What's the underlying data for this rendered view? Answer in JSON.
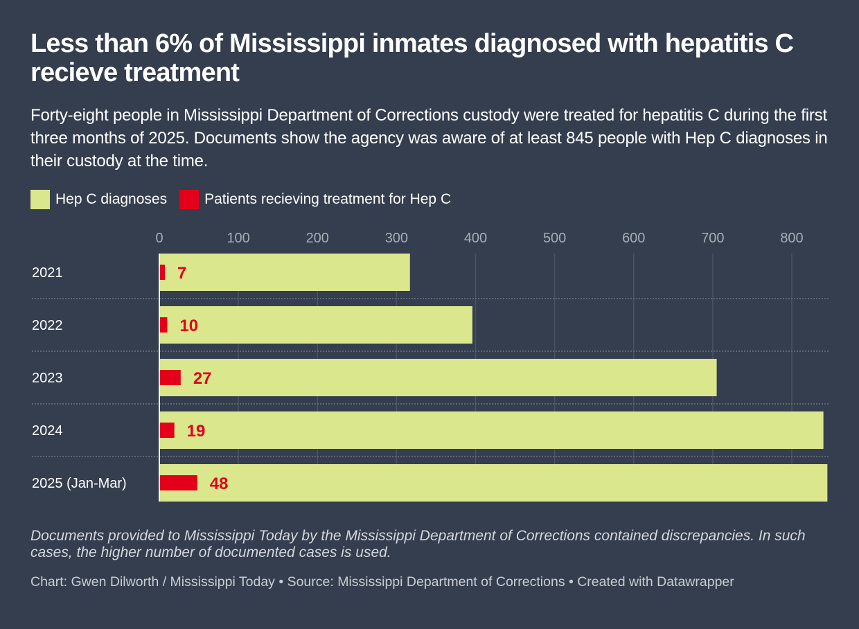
{
  "header": {
    "title": "Less than 6% of Mississippi inmates diagnosed with hepatitis C recieve treatment",
    "subtitle": "Forty-eight people in Mississippi Department of Corrections custody were treated for hepatitis C during the first three months of 2025. Documents show the agency was aware of at least 845 people with Hep C diagnoses in their custody at the time."
  },
  "legend": [
    {
      "label": "Hep C diagnoses",
      "color": "#dbe78c"
    },
    {
      "label": "Patients recieving treatment for Hep C",
      "color": "#e4001a"
    }
  ],
  "footer": {
    "notes": "Documents provided to Mississippi Today by the Mississippi Department of Corrections contained discrepancies. In such cases, the higher number of documented cases is used.",
    "byline": "Chart: Gwen Dilworth / Mississippi Today • Source: Mississippi Department of Corrections • Created with Datawrapper"
  },
  "chart_data": {
    "type": "bar",
    "orientation": "horizontal",
    "title": "Less than 6% of Mississippi inmates diagnosed with hepatitis C recieve treatment",
    "xlabel": "",
    "ylabel": "",
    "categories": [
      "2021",
      "2022",
      "2023",
      "2024",
      "2025 (Jan-Mar)"
    ],
    "series": [
      {
        "name": "Hep C diagnoses",
        "color": "#dbe78c",
        "values": [
          317,
          396,
          705,
          840,
          845
        ]
      },
      {
        "name": "Patients recieving treatment for Hep C",
        "color": "#e4001a",
        "values": [
          7,
          10,
          27,
          19,
          48
        ],
        "labeled": true
      }
    ],
    "xlim": [
      0,
      845
    ],
    "ticks": [
      0,
      100,
      200,
      300,
      400,
      500,
      600,
      700,
      800
    ],
    "grid": true,
    "legend_position": "top-left"
  }
}
